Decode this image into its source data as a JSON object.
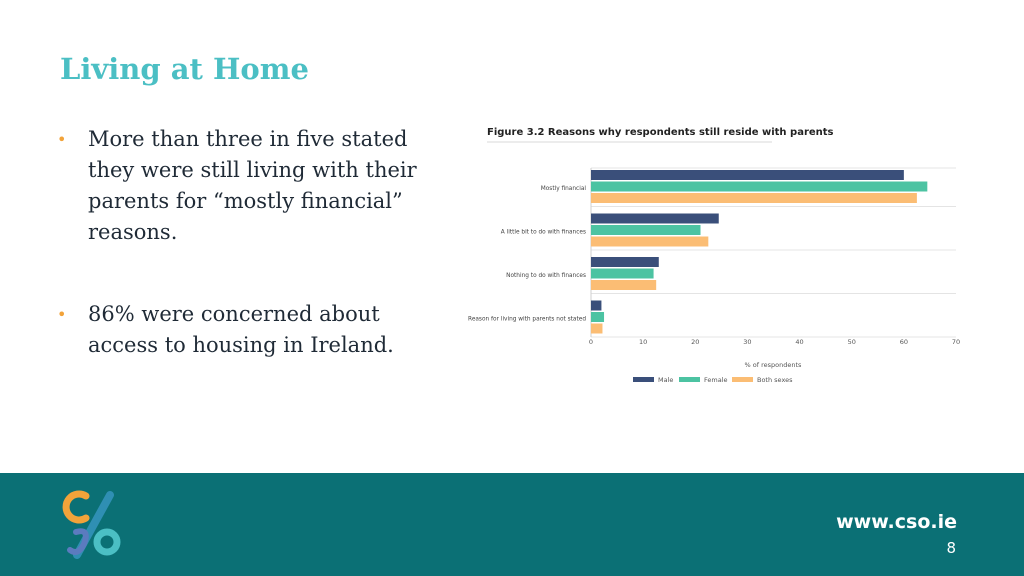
{
  "slide": {
    "title": "Living at Home",
    "bullets": [
      "More than three in five stated they were still living with their parents for “mostly financial” reasons.",
      "86% were concerned about access to housing in Ireland."
    ]
  },
  "chart_data": {
    "type": "bar",
    "orientation": "horizontal",
    "title": "Figure 3.2 Reasons why respondents still reside with parents",
    "xlabel": "% of respondents",
    "ylabel": "",
    "categories": [
      "Mostly financial",
      "A little bit to do with finances",
      "Nothing to do with finances",
      "Reason for living with parents not stated"
    ],
    "series": [
      {
        "name": "Male",
        "color": "#3a4f7a",
        "values": [
          60,
          24.5,
          13,
          2
        ]
      },
      {
        "name": "Female",
        "color": "#4cc3a2",
        "values": [
          64.5,
          21,
          12,
          2.5
        ]
      },
      {
        "name": "Both sexes",
        "color": "#fbbd74",
        "values": [
          62.5,
          22.5,
          12.5,
          2.2
        ]
      }
    ],
    "xlim": [
      0,
      70
    ],
    "xticks": [
      0,
      10,
      20,
      30,
      40,
      50,
      60,
      70
    ],
    "grid": true,
    "legend": "bottom"
  },
  "footer": {
    "url": "www.cso.ie",
    "page": "8"
  },
  "colors": {
    "accent": "#4bbfc4",
    "bullet": "#f2a33a",
    "footer_bg": "#0b7075"
  }
}
